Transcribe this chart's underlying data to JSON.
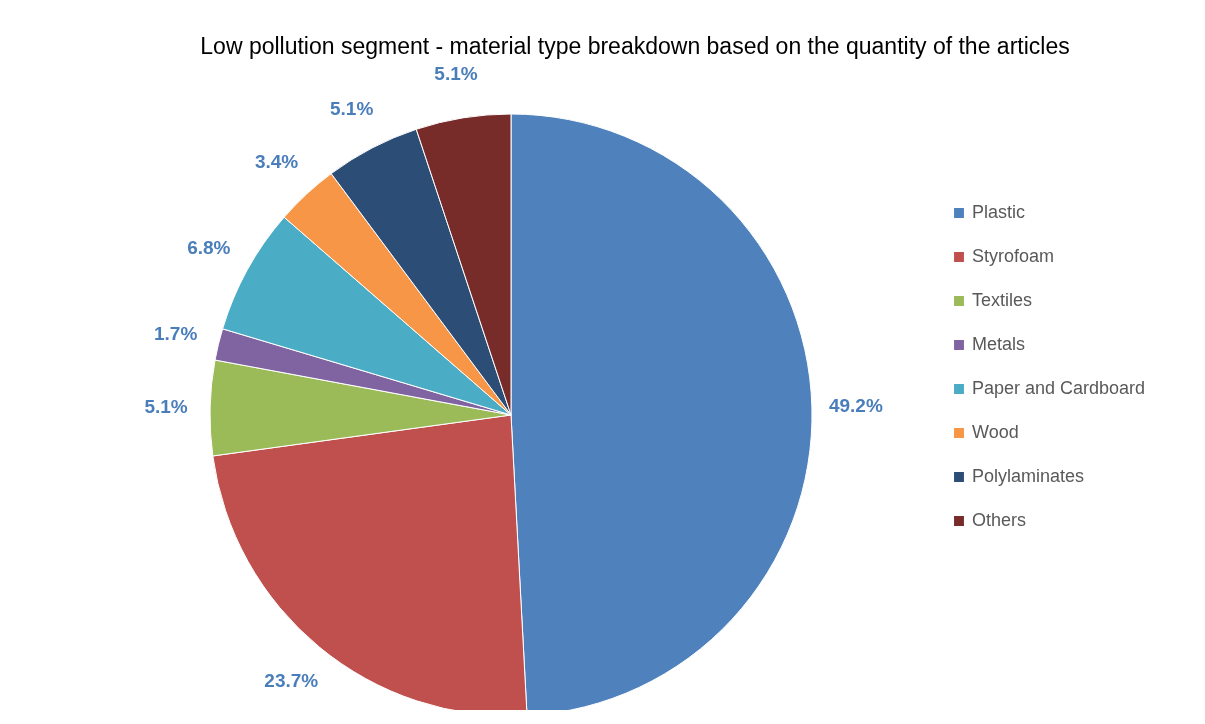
{
  "chart_data": {
    "type": "pie",
    "title": "Low pollution segment - material type breakdown based on the quantity of the articles",
    "categories": [
      "Plastic",
      "Styrofoam",
      "Textiles",
      "Metals",
      "Paper and Cardboard",
      "Wood",
      "Polylaminates",
      "Others"
    ],
    "values": [
      49.2,
      23.7,
      5.1,
      1.7,
      6.8,
      3.4,
      5.1,
      5.1
    ],
    "value_labels": [
      "49.2%",
      "23.7%",
      "5.1%",
      "1.7%",
      "6.8%",
      "3.4%",
      "5.1%",
      "5.1%"
    ],
    "colors": [
      "#4f81bd",
      "#c0504d",
      "#9bbb59",
      "#8064a2",
      "#4bacc6",
      "#f79646",
      "#2c4d75",
      "#772c2a"
    ],
    "legend": "right"
  }
}
